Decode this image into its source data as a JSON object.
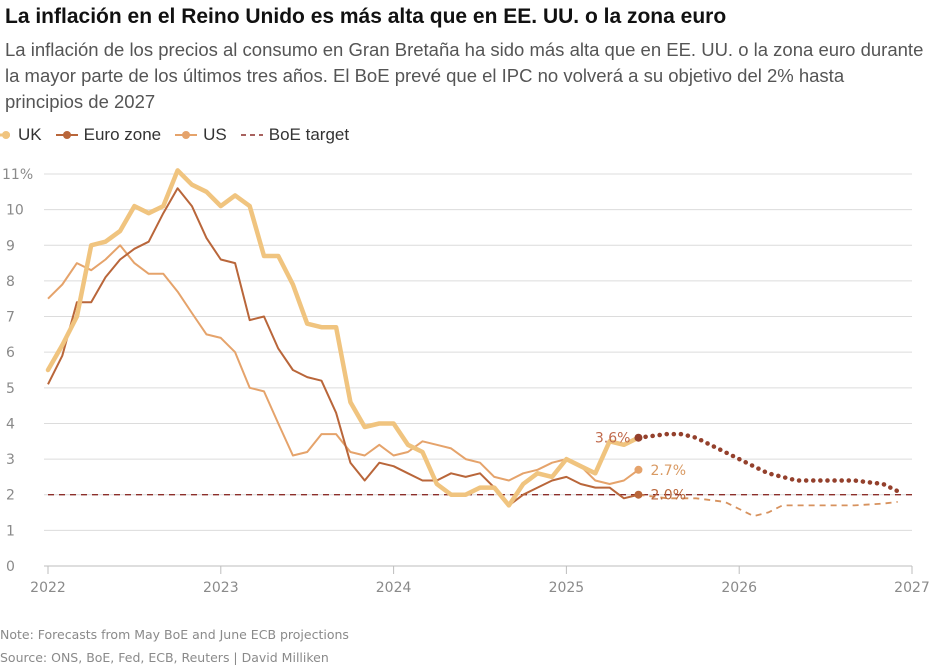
{
  "title": "La inflación en el Reino Unido es más alta que en EE. UU. o la zona euro",
  "subtitle": "La inflación de los precios al consumo en Gran Bretaña ha sido más alta que en EE. UU. o la zona euro durante la mayor parte de los últimos tres años. El BoE prevé que el IPC no volverá a su objetivo del 2% hasta principios de 2027",
  "legend": {
    "uk": "UK",
    "euro": "Euro zone",
    "us": "US",
    "boe": "BoE target"
  },
  "note": "Note: Forecasts from May BoE and June ECB projections",
  "source": "Source: ONS, BoE, Fed, ECB, Reuters | David Milliken",
  "chart_data": {
    "type": "line",
    "xlabel": "",
    "ylabel": "",
    "xlim": [
      2022.0,
      2027.0
    ],
    "ylim": [
      0,
      11
    ],
    "x_ticks": [
      "2022",
      "2023",
      "2024",
      "2025",
      "2026",
      "2027"
    ],
    "y_ticks": [
      {
        "value": 0,
        "label": "0"
      },
      {
        "value": 1,
        "label": "1"
      },
      {
        "value": 2,
        "label": "2"
      },
      {
        "value": 3,
        "label": "3"
      },
      {
        "value": 4,
        "label": "4"
      },
      {
        "value": 5,
        "label": "5"
      },
      {
        "value": 6,
        "label": "6"
      },
      {
        "value": 7,
        "label": "7"
      },
      {
        "value": 8,
        "label": "8"
      },
      {
        "value": 9,
        "label": "9"
      },
      {
        "value": 10,
        "label": "10"
      },
      {
        "value": 11,
        "label": "11%"
      }
    ],
    "grid": true,
    "legend_position": "top-left",
    "colors": {
      "uk": "#f0c47f",
      "euro": "#b9663a",
      "us": "#e5a36b",
      "boe": "#8c2f2a",
      "uk_forecast": "#94402c",
      "euro_forecast": "#d7925e",
      "grid": "#dcdcdc",
      "tick": "#8a8a8a"
    },
    "series": [
      {
        "name": "UK",
        "x": [
          2022.0,
          2022.083,
          2022.167,
          2022.25,
          2022.333,
          2022.417,
          2022.5,
          2022.583,
          2022.667,
          2022.75,
          2022.833,
          2022.917,
          2023.0,
          2023.083,
          2023.167,
          2023.25,
          2023.333,
          2023.417,
          2023.5,
          2023.583,
          2023.667,
          2023.75,
          2023.833,
          2023.917,
          2024.0,
          2024.083,
          2024.167,
          2024.25,
          2024.333,
          2024.417,
          2024.5,
          2024.583,
          2024.667,
          2024.75,
          2024.833,
          2024.917,
          2025.0,
          2025.083,
          2025.167,
          2025.25,
          2025.333,
          2025.417
        ],
        "values": [
          5.5,
          6.2,
          7.0,
          9.0,
          9.1,
          9.4,
          10.1,
          9.9,
          10.1,
          11.1,
          10.7,
          10.5,
          10.1,
          10.4,
          10.1,
          8.7,
          8.7,
          7.9,
          6.8,
          6.7,
          6.7,
          4.6,
          3.9,
          4.0,
          4.0,
          3.4,
          3.2,
          2.3,
          2.0,
          2.0,
          2.2,
          2.2,
          1.7,
          2.3,
          2.6,
          2.5,
          3.0,
          2.8,
          2.6,
          3.5,
          3.4,
          3.6
        ],
        "end_label": "3.6%"
      },
      {
        "name": "Euro zone",
        "x": [
          2022.0,
          2022.083,
          2022.167,
          2022.25,
          2022.333,
          2022.417,
          2022.5,
          2022.583,
          2022.667,
          2022.75,
          2022.833,
          2022.917,
          2023.0,
          2023.083,
          2023.167,
          2023.25,
          2023.333,
          2023.417,
          2023.5,
          2023.583,
          2023.667,
          2023.75,
          2023.833,
          2023.917,
          2024.0,
          2024.083,
          2024.167,
          2024.25,
          2024.333,
          2024.417,
          2024.5,
          2024.583,
          2024.667,
          2024.75,
          2024.833,
          2024.917,
          2025.0,
          2025.083,
          2025.167,
          2025.25,
          2025.333,
          2025.417
        ],
        "values": [
          5.1,
          5.9,
          7.4,
          7.4,
          8.1,
          8.6,
          8.9,
          9.1,
          9.9,
          10.6,
          10.1,
          9.2,
          8.6,
          8.5,
          6.9,
          7.0,
          6.1,
          5.5,
          5.3,
          5.2,
          4.3,
          2.9,
          2.4,
          2.9,
          2.8,
          2.6,
          2.4,
          2.4,
          2.6,
          2.5,
          2.6,
          2.2,
          1.7,
          2.0,
          2.2,
          2.4,
          2.5,
          2.3,
          2.2,
          2.2,
          1.9,
          2.0
        ],
        "end_label": "2.0%"
      },
      {
        "name": "US",
        "x": [
          2022.0,
          2022.083,
          2022.167,
          2022.25,
          2022.333,
          2022.417,
          2022.5,
          2022.583,
          2022.667,
          2022.75,
          2022.833,
          2022.917,
          2023.0,
          2023.083,
          2023.167,
          2023.25,
          2023.333,
          2023.417,
          2023.5,
          2023.583,
          2023.667,
          2023.75,
          2023.833,
          2023.917,
          2024.0,
          2024.083,
          2024.167,
          2024.25,
          2024.333,
          2024.417,
          2024.5,
          2024.583,
          2024.667,
          2024.75,
          2024.833,
          2024.917,
          2025.0,
          2025.083,
          2025.167,
          2025.25,
          2025.333,
          2025.417
        ],
        "values": [
          7.5,
          7.9,
          8.5,
          8.3,
          8.6,
          9.0,
          8.5,
          8.2,
          8.2,
          7.7,
          7.1,
          6.5,
          6.4,
          6.0,
          5.0,
          4.9,
          4.0,
          3.1,
          3.2,
          3.7,
          3.7,
          3.2,
          3.1,
          3.4,
          3.1,
          3.2,
          3.5,
          3.4,
          3.3,
          3.0,
          2.9,
          2.5,
          2.4,
          2.6,
          2.7,
          2.9,
          3.0,
          2.8,
          2.4,
          2.3,
          2.4,
          2.7
        ],
        "end_label": "2.7%"
      },
      {
        "name": "BoE target",
        "x": [
          2022.0,
          2027.0
        ],
        "values": [
          2.0,
          2.0
        ]
      }
    ],
    "forecasts": [
      {
        "series": "UK",
        "style": "dotted",
        "x": [
          2025.417,
          2025.5,
          2025.583,
          2025.667,
          2025.75,
          2025.833,
          2025.917,
          2026.0,
          2026.083,
          2026.167,
          2026.25,
          2026.333,
          2026.417,
          2026.5,
          2026.583,
          2026.667,
          2026.75,
          2026.833,
          2026.917
        ],
        "values": [
          3.6,
          3.65,
          3.7,
          3.7,
          3.6,
          3.4,
          3.2,
          3.0,
          2.8,
          2.6,
          2.5,
          2.4,
          2.4,
          2.4,
          2.4,
          2.4,
          2.35,
          2.3,
          2.1
        ]
      },
      {
        "series": "Euro zone",
        "style": "dashed",
        "x": [
          2025.417,
          2025.583,
          2025.75,
          2025.917,
          2026.0,
          2026.083,
          2026.167,
          2026.25,
          2026.333,
          2026.5,
          2026.667,
          2026.833,
          2026.917
        ],
        "values": [
          2.0,
          1.9,
          1.9,
          1.8,
          1.6,
          1.4,
          1.5,
          1.7,
          1.7,
          1.7,
          1.7,
          1.75,
          1.8
        ]
      }
    ]
  }
}
